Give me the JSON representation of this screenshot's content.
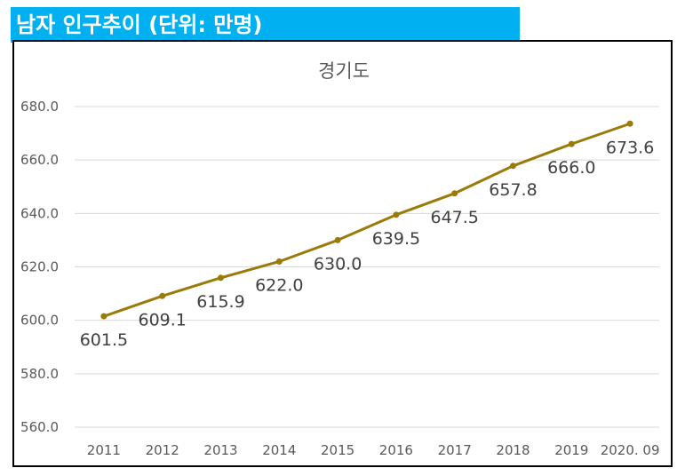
{
  "banner": {
    "title": "남자 인구추이 (단위: 만명)"
  },
  "colors": {
    "banner_bg": "#00B0F0",
    "line": "#9C7A0A",
    "grid": "#D9D9D9"
  },
  "chart_data": {
    "type": "line",
    "title": "경기도",
    "xlabel": "",
    "ylabel": "",
    "categories": [
      "2011",
      "2012",
      "2013",
      "2014",
      "2015",
      "2016",
      "2017",
      "2018",
      "2019",
      "2020. 09"
    ],
    "series": [
      {
        "name": "경기도",
        "values": [
          601.5,
          609.1,
          615.9,
          622.0,
          630.0,
          639.5,
          647.5,
          657.8,
          666.0,
          673.6
        ],
        "labels": [
          "601.5",
          "609.1",
          "615.9",
          "622.0",
          "630.0",
          "639.5",
          "647.5",
          "657.8",
          "666.0",
          "673.6"
        ]
      }
    ],
    "ylim": [
      560,
      680
    ],
    "yticks": [
      "560.0",
      "580.0",
      "600.0",
      "620.0",
      "640.0",
      "660.0",
      "680.0"
    ],
    "grid": true,
    "legend": "none"
  }
}
